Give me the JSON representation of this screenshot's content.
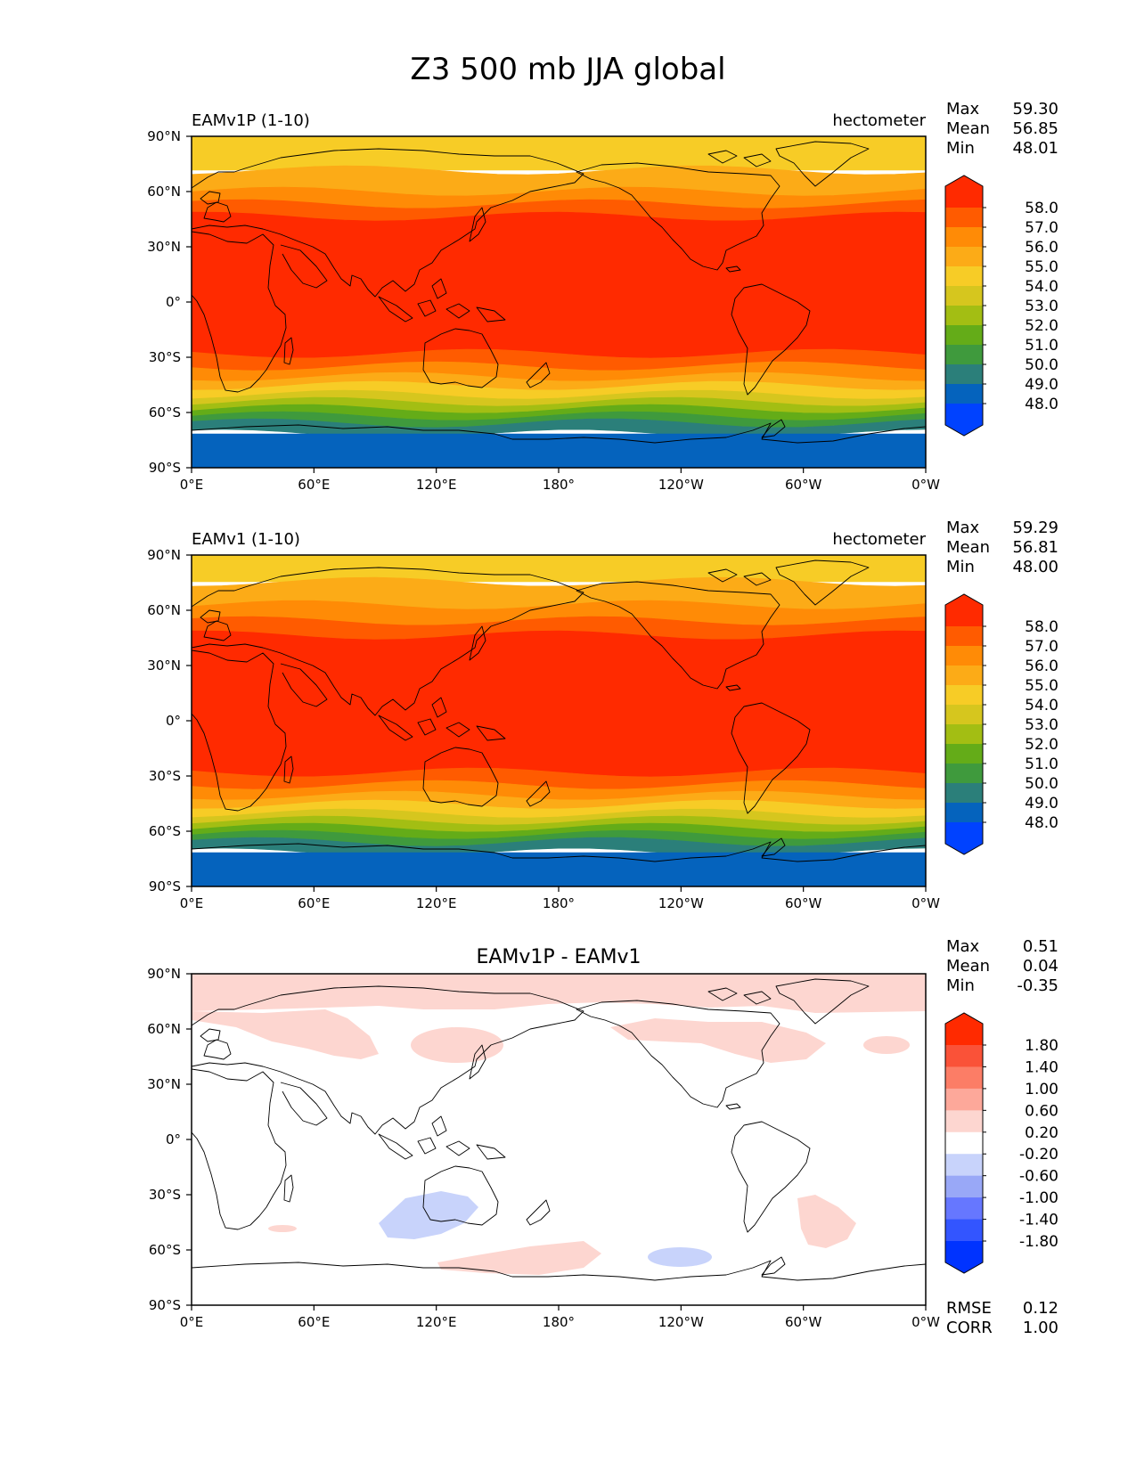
{
  "figure": {
    "title": "Z3 500 mb JJA global"
  },
  "axes": {
    "lat_ticks": [
      "90°N",
      "60°N",
      "30°N",
      "0°",
      "30°S",
      "60°S",
      "90°S"
    ],
    "lon_ticks": [
      "0°E",
      "60°E",
      "120°E",
      "180°",
      "120°W",
      "60°W",
      "0°W"
    ]
  },
  "colors": {
    "field_levels": [
      "#0042ff",
      "#0563bd",
      "#2b7f7a",
      "#3f9a3d",
      "#64ac18",
      "#a3be13",
      "#d6c61e",
      "#f7cc26",
      "#fcab17",
      "#ff8b06",
      "#ff5b00",
      "#ff2a00"
    ],
    "diff_levels": [
      "#0033ff",
      "#3355ff",
      "#6677ff",
      "#99a8f7",
      "#c8d3fb",
      "#ffffff",
      "#fdd6d0",
      "#fda89a",
      "#fc7d66",
      "#fa5238",
      "#ff2a00"
    ]
  },
  "panels": [
    {
      "left_title": "EAMv1P (1-10)",
      "right_title": "hectometer",
      "center_title": "",
      "stats": {
        "labels": [
          "Max",
          "Mean",
          "Min"
        ],
        "values": [
          "59.30",
          "56.85",
          "48.01"
        ]
      },
      "colorbar": [
        "58.0",
        "57.0",
        "56.0",
        "55.0",
        "54.0",
        "53.0",
        "52.0",
        "51.0",
        "50.0",
        "49.0",
        "48.0"
      ]
    },
    {
      "left_title": "EAMv1 (1-10)",
      "right_title": "hectometer",
      "center_title": "",
      "stats": {
        "labels": [
          "Max",
          "Mean",
          "Min"
        ],
        "values": [
          "59.29",
          "56.81",
          "48.00"
        ]
      },
      "colorbar": [
        "58.0",
        "57.0",
        "56.0",
        "55.0",
        "54.0",
        "53.0",
        "52.0",
        "51.0",
        "50.0",
        "49.0",
        "48.0"
      ]
    },
    {
      "left_title": "",
      "right_title": "",
      "center_title": "EAMv1P - EAMv1",
      "stats": {
        "labels": [
          "Max",
          "Mean",
          "Min"
        ],
        "values": [
          "0.51",
          "0.04",
          "-0.35"
        ]
      },
      "colorbar": [
        "1.80",
        "1.40",
        "1.00",
        "0.60",
        "0.20",
        "-0.20",
        "-0.60",
        "-1.00",
        "-1.40",
        "-1.80"
      ],
      "metrics": {
        "labels": [
          "RMSE",
          "CORR"
        ],
        "values": [
          "0.12",
          "1.00"
        ]
      }
    }
  ]
}
